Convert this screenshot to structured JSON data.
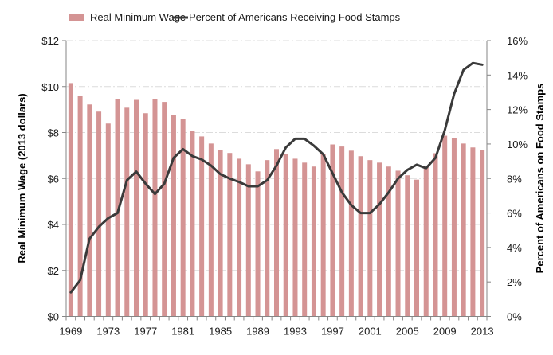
{
  "chart_data": {
    "type": "bar+line",
    "title": "",
    "x": [
      1969,
      1970,
      1971,
      1972,
      1973,
      1974,
      1975,
      1976,
      1977,
      1978,
      1979,
      1980,
      1981,
      1982,
      1983,
      1984,
      1985,
      1986,
      1987,
      1988,
      1989,
      1990,
      1991,
      1992,
      1993,
      1994,
      1995,
      1996,
      1997,
      1998,
      1999,
      2000,
      2001,
      2002,
      2003,
      2004,
      2005,
      2006,
      2007,
      2008,
      2009,
      2010,
      2011,
      2012,
      2013
    ],
    "x_tick_labels": [
      "1969",
      "1973",
      "1977",
      "1981",
      "1985",
      "1989",
      "1993",
      "1997",
      "2001",
      "2005",
      "2009",
      "2013"
    ],
    "series": [
      {
        "name": "Real Minimum Wage",
        "type": "bar",
        "axis": "left",
        "color": "#D49494",
        "values": [
          10.15,
          9.61,
          9.22,
          8.91,
          8.39,
          9.46,
          9.08,
          9.42,
          8.84,
          9.46,
          9.33,
          8.77,
          8.59,
          8.07,
          7.83,
          7.52,
          7.24,
          7.11,
          6.86,
          6.62,
          6.31,
          6.8,
          7.28,
          7.08,
          6.86,
          6.69,
          6.52,
          7.08,
          7.48,
          7.39,
          7.21,
          6.97,
          6.8,
          6.69,
          6.52,
          6.34,
          6.14,
          5.95,
          6.52,
          7.1,
          7.86,
          7.77,
          7.52,
          7.35,
          7.25
        ]
      },
      {
        "name": "Percent of Americans Receiving Food Stamps",
        "type": "line",
        "axis": "right",
        "color": "#3a3a3a",
        "values": [
          1.4,
          2.1,
          4.5,
          5.2,
          5.7,
          6.0,
          7.9,
          8.4,
          7.7,
          7.1,
          7.7,
          9.2,
          9.7,
          9.3,
          9.1,
          8.75,
          8.25,
          8.0,
          7.8,
          7.55,
          7.55,
          7.9,
          8.75,
          9.8,
          10.3,
          10.3,
          9.9,
          9.4,
          8.3,
          7.2,
          6.45,
          6.0,
          6.0,
          6.5,
          7.2,
          8.0,
          8.5,
          8.8,
          8.6,
          9.2,
          10.8,
          12.9,
          14.3,
          14.7,
          14.6
        ]
      }
    ],
    "left_axis": {
      "label": "Real Minimum Wage (2013 dollars)",
      "range": [
        0,
        12
      ],
      "ticks": [
        0,
        2,
        4,
        6,
        8,
        10,
        12
      ],
      "tick_labels": [
        "$0",
        "$2",
        "$4",
        "$6",
        "$8",
        "$10",
        "$12"
      ]
    },
    "right_axis": {
      "label": "Percent of Americans on Food Stamps",
      "range": [
        0,
        16
      ],
      "ticks": [
        0,
        2,
        4,
        6,
        8,
        10,
        12,
        14,
        16
      ],
      "tick_labels": [
        "0%",
        "2%",
        "4%",
        "6%",
        "8%",
        "10%",
        "12%",
        "14%",
        "16%"
      ]
    },
    "xlabel": "",
    "grid": true,
    "legend": {
      "position": "top",
      "entries": [
        "Real Minimum Wage",
        "Percent of Americans Receiving Food Stamps"
      ]
    }
  }
}
